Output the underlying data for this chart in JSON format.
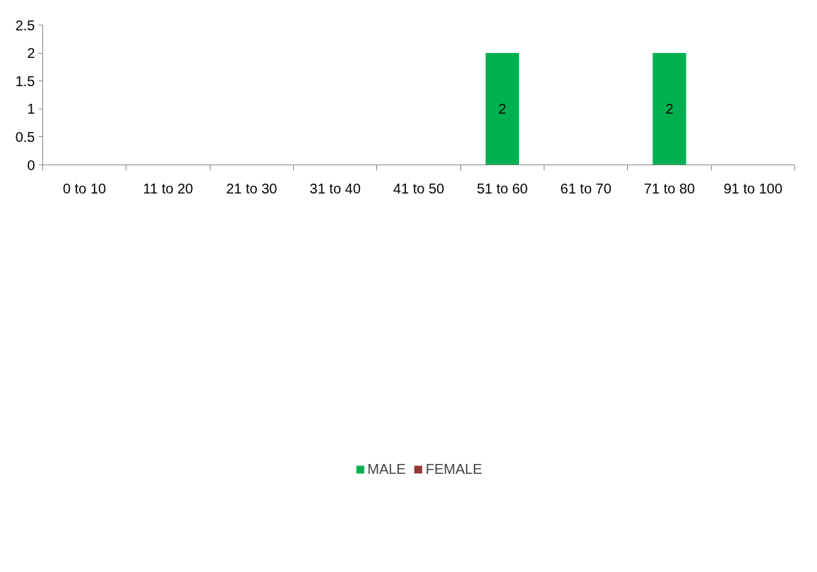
{
  "chart_data": {
    "type": "bar",
    "stacked": true,
    "categories": [
      "0 to 10",
      "11 to 20",
      "21 to 30",
      "31 to 40",
      "41 to 50",
      "51 to 60",
      "61 to 70",
      "71 to 80",
      "91 to 100"
    ],
    "series": [
      {
        "name": "MALE",
        "color": "#00b050",
        "values": [
          0,
          0,
          0,
          0,
          0,
          2,
          0,
          2,
          0
        ],
        "value_labels": [
          null,
          null,
          null,
          null,
          null,
          "2",
          null,
          "2",
          null
        ]
      },
      {
        "name": "FEMALE",
        "color": "#953735",
        "values": [
          0,
          0,
          0,
          0,
          0,
          0,
          0,
          0,
          0
        ]
      }
    ],
    "ylim": [
      0,
      2.5
    ],
    "yticks": [
      0,
      0.5,
      1,
      1.5,
      2,
      2.5
    ],
    "grid": false,
    "legend": "bottom"
  }
}
